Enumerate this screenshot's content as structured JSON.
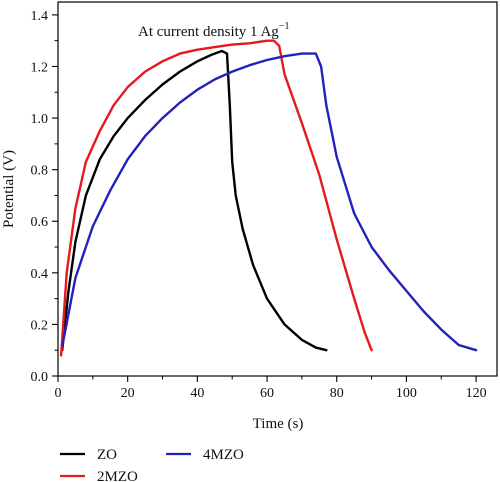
{
  "chart_data": {
    "type": "line",
    "annotation": "At current density 1 Ag",
    "annotation_sup": "−1",
    "xlabel": "Time (s)",
    "ylabel": "Potential (V)",
    "xlim": [
      0,
      126
    ],
    "ylim": [
      0,
      1.45
    ],
    "xticks": [
      0,
      20,
      40,
      60,
      80,
      100,
      120
    ],
    "yticks": [
      0.0,
      0.2,
      0.4,
      0.6,
      0.8,
      1.0,
      1.2,
      1.4
    ],
    "xtick_labels": [
      "0",
      "20",
      "40",
      "60",
      "80",
      "100",
      "120"
    ],
    "ytick_labels": [
      "0.0",
      "0.2",
      "0.4",
      "0.6",
      "0.8",
      "1.0",
      "1.2",
      "1.4"
    ],
    "grid": false,
    "legend_position": "bottom-left",
    "series": [
      {
        "name": "ZO",
        "color": "#000000",
        "x": [
          1.2,
          3,
          5,
          8,
          12,
          16,
          20,
          25,
          30,
          35,
          40,
          44,
          47,
          48.5,
          49.3,
          50,
          51,
          53,
          56,
          60,
          65,
          70,
          74,
          77
        ],
        "y": [
          0.1,
          0.33,
          0.52,
          0.7,
          0.84,
          0.93,
          1.0,
          1.07,
          1.13,
          1.18,
          1.22,
          1.245,
          1.26,
          1.25,
          1.05,
          0.83,
          0.7,
          0.57,
          0.43,
          0.3,
          0.2,
          0.14,
          0.11,
          0.1
        ]
      },
      {
        "name": "2MZO",
        "color": "#e41a1c",
        "x": [
          0.9,
          2.5,
          5,
          8,
          12,
          16,
          20,
          25,
          30,
          35,
          40,
          45,
          50,
          55,
          60,
          62,
          63.5,
          65,
          70,
          75,
          80,
          85,
          88,
          90
        ],
        "y": [
          0.08,
          0.4,
          0.65,
          0.83,
          0.95,
          1.05,
          1.12,
          1.18,
          1.22,
          1.25,
          1.265,
          1.275,
          1.285,
          1.29,
          1.3,
          1.3,
          1.28,
          1.17,
          0.98,
          0.78,
          0.53,
          0.3,
          0.17,
          0.1
        ]
      },
      {
        "name": "4MZO",
        "color": "#2222bb",
        "x": [
          1.3,
          5,
          10,
          15,
          20,
          25,
          30,
          35,
          40,
          45,
          50,
          55,
          60,
          65,
          70,
          74,
          75.5,
          77,
          80,
          85,
          90,
          95,
          100,
          105,
          110,
          115,
          120
        ],
        "y": [
          0.12,
          0.38,
          0.58,
          0.72,
          0.84,
          0.93,
          1.0,
          1.06,
          1.11,
          1.15,
          1.18,
          1.205,
          1.225,
          1.24,
          1.25,
          1.25,
          1.2,
          1.05,
          0.85,
          0.63,
          0.5,
          0.41,
          0.33,
          0.25,
          0.18,
          0.12,
          0.1
        ]
      }
    ]
  }
}
